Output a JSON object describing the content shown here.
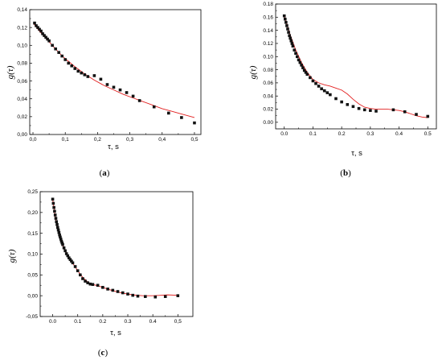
{
  "colors": {
    "points": "#111111",
    "fit_line": "#e32020",
    "axis": "#000000"
  },
  "chart_data": [
    {
      "id": "a",
      "type": "scatter",
      "panel_label": {
        "open": "(",
        "letter": "a",
        "close": ")"
      },
      "title": "",
      "ylabel": "g(τ)",
      "xlabel": "τ, s",
      "xlim": [
        -0.01,
        0.52
      ],
      "ylim": [
        0.0,
        0.14
      ],
      "x_ticks": [
        0.0,
        0.1,
        0.2,
        0.3,
        0.4,
        0.5
      ],
      "x_tick_labels": [
        "0,0",
        "0,1",
        "0,2",
        "0,3",
        "0,4",
        "0,5"
      ],
      "y_ticks": [
        0.0,
        0.02,
        0.04,
        0.06,
        0.08,
        0.1,
        0.12,
        0.14
      ],
      "y_tick_labels": [
        "0,00",
        "0,02",
        "0,04",
        "0,06",
        "0,08",
        "0,10",
        "0,12",
        "0,14"
      ],
      "grid": false,
      "series": [
        {
          "kind": "points",
          "x": [
            0.005,
            0.01,
            0.015,
            0.02,
            0.025,
            0.03,
            0.035,
            0.04,
            0.045,
            0.05,
            0.06,
            0.07,
            0.08,
            0.09,
            0.1,
            0.11,
            0.12,
            0.13,
            0.14,
            0.15,
            0.16,
            0.17,
            0.19,
            0.21,
            0.23,
            0.25,
            0.27,
            0.29,
            0.31,
            0.33,
            0.375,
            0.42,
            0.46,
            0.5
          ],
          "y": [
            0.125,
            0.122,
            0.12,
            0.118,
            0.116,
            0.113,
            0.111,
            0.109,
            0.107,
            0.105,
            0.1,
            0.096,
            0.092,
            0.088,
            0.084,
            0.08,
            0.077,
            0.074,
            0.071,
            0.069,
            0.067,
            0.065,
            0.066,
            0.062,
            0.056,
            0.053,
            0.05,
            0.047,
            0.043,
            0.038,
            0.031,
            0.024,
            0.019,
            0.013
          ]
        },
        {
          "kind": "line",
          "x": [
            0.003,
            0.02,
            0.04,
            0.06,
            0.08,
            0.1,
            0.13,
            0.16,
            0.19,
            0.22,
            0.25,
            0.28,
            0.31,
            0.34,
            0.37,
            0.4,
            0.43,
            0.46,
            0.5
          ],
          "y": [
            0.124,
            0.116,
            0.108,
            0.1,
            0.092,
            0.085,
            0.076,
            0.068,
            0.061,
            0.055,
            0.05,
            0.045,
            0.041,
            0.037,
            0.033,
            0.029,
            0.026,
            0.023,
            0.019
          ]
        }
      ]
    },
    {
      "id": "b",
      "type": "scatter",
      "panel_label": {
        "open": "(",
        "letter": "b",
        "close": ")"
      },
      "title": "",
      "ylabel": "g(τ)",
      "xlabel": "τ, s",
      "xlim": [
        -0.03,
        0.53
      ],
      "ylim": [
        -0.01,
        0.18
      ],
      "x_ticks": [
        0.0,
        0.1,
        0.2,
        0.3,
        0.4,
        0.5
      ],
      "x_tick_labels": [
        "0.0",
        "0.1",
        "0.2",
        "0.3",
        "0.4",
        "0.5"
      ],
      "y_ticks": [
        0.0,
        0.02,
        0.04,
        0.06,
        0.08,
        0.1,
        0.12,
        0.14,
        0.16,
        0.18
      ],
      "y_tick_labels": [
        "0.00",
        "0.02",
        "0.04",
        "0.06",
        "0.08",
        "0.10",
        "0.12",
        "0.14",
        "0.16",
        "0.18"
      ],
      "grid": false,
      "series": [
        {
          "kind": "points",
          "x": [
            0.0,
            0.003,
            0.006,
            0.009,
            0.012,
            0.015,
            0.018,
            0.021,
            0.024,
            0.027,
            0.03,
            0.035,
            0.04,
            0.045,
            0.05,
            0.055,
            0.06,
            0.065,
            0.07,
            0.075,
            0.08,
            0.09,
            0.1,
            0.11,
            0.12,
            0.13,
            0.14,
            0.15,
            0.16,
            0.18,
            0.2,
            0.22,
            0.24,
            0.26,
            0.28,
            0.3,
            0.32,
            0.38,
            0.42,
            0.46,
            0.5
          ],
          "y": [
            0.162,
            0.157,
            0.152,
            0.147,
            0.142,
            0.137,
            0.132,
            0.128,
            0.124,
            0.12,
            0.116,
            0.11,
            0.105,
            0.1,
            0.095,
            0.091,
            0.087,
            0.083,
            0.079,
            0.076,
            0.073,
            0.068,
            0.063,
            0.059,
            0.055,
            0.051,
            0.048,
            0.045,
            0.042,
            0.036,
            0.031,
            0.027,
            0.024,
            0.021,
            0.019,
            0.018,
            0.017,
            0.019,
            0.016,
            0.012,
            0.009
          ]
        },
        {
          "kind": "line",
          "x": [
            0.0,
            0.02,
            0.04,
            0.06,
            0.08,
            0.1,
            0.12,
            0.14,
            0.16,
            0.18,
            0.2,
            0.22,
            0.24,
            0.26,
            0.28,
            0.3,
            0.32,
            0.34,
            0.36,
            0.38,
            0.4,
            0.42,
            0.44,
            0.46,
            0.48,
            0.5
          ],
          "y": [
            0.162,
            0.134,
            0.11,
            0.091,
            0.076,
            0.065,
            0.06,
            0.057,
            0.055,
            0.052,
            0.049,
            0.043,
            0.035,
            0.028,
            0.023,
            0.021,
            0.02,
            0.02,
            0.02,
            0.019,
            0.018,
            0.016,
            0.013,
            0.01,
            0.008,
            0.007
          ]
        }
      ]
    },
    {
      "id": "c",
      "type": "scatter",
      "panel_label": {
        "open": "(",
        "letter": "c",
        "close": ")"
      },
      "title": "",
      "ylabel": "g(τ)",
      "xlabel": "τ, s",
      "xlim": [
        -0.05,
        0.56
      ],
      "ylim": [
        -0.05,
        0.25
      ],
      "x_ticks": [
        0.0,
        0.1,
        0.2,
        0.3,
        0.4,
        0.5
      ],
      "x_tick_labels": [
        "0.0",
        "0.1",
        "0.2",
        "0.3",
        "0.4",
        "0,5"
      ],
      "y_ticks": [
        -0.05,
        0.0,
        0.05,
        0.1,
        0.15,
        0.2,
        0.25
      ],
      "y_tick_labels": [
        "-0,05",
        "0,00",
        "0,05",
        "0,10",
        "0,15",
        "0,20",
        "0,25"
      ],
      "grid": false,
      "series": [
        {
          "kind": "points",
          "x": [
            0.0,
            0.0025,
            0.005,
            0.0075,
            0.01,
            0.0125,
            0.015,
            0.0175,
            0.02,
            0.0225,
            0.025,
            0.0275,
            0.03,
            0.0325,
            0.035,
            0.0375,
            0.04,
            0.045,
            0.05,
            0.055,
            0.06,
            0.065,
            0.07,
            0.075,
            0.08,
            0.09,
            0.1,
            0.11,
            0.12,
            0.13,
            0.14,
            0.15,
            0.16,
            0.18,
            0.2,
            0.22,
            0.24,
            0.26,
            0.28,
            0.3,
            0.32,
            0.34,
            0.37,
            0.41,
            0.45,
            0.5
          ],
          "y": [
            0.232,
            0.222,
            0.212,
            0.203,
            0.194,
            0.186,
            0.178,
            0.171,
            0.164,
            0.158,
            0.152,
            0.146,
            0.141,
            0.136,
            0.131,
            0.127,
            0.123,
            0.115,
            0.108,
            0.101,
            0.096,
            0.091,
            0.087,
            0.083,
            0.079,
            0.07,
            0.06,
            0.05,
            0.041,
            0.035,
            0.031,
            0.028,
            0.027,
            0.025,
            0.02,
            0.016,
            0.013,
            0.01,
            0.007,
            0.004,
            0.001,
            -0.001,
            -0.002,
            -0.003,
            -0.002,
            0.0
          ]
        },
        {
          "kind": "line",
          "x": [
            0.0,
            0.01,
            0.02,
            0.03,
            0.04,
            0.06,
            0.08,
            0.1,
            0.12,
            0.14,
            0.16,
            0.18,
            0.2,
            0.22,
            0.24,
            0.26,
            0.28,
            0.3,
            0.32,
            0.34,
            0.36,
            0.38,
            0.4,
            0.43,
            0.46,
            0.5
          ],
          "y": [
            0.232,
            0.19,
            0.16,
            0.138,
            0.12,
            0.097,
            0.078,
            0.06,
            0.044,
            0.033,
            0.027,
            0.024,
            0.02,
            0.016,
            0.012,
            0.009,
            0.006,
            0.004,
            0.002,
            0.001,
            0.0,
            0.0,
            0.0,
            0.001,
            0.002,
            0.001
          ]
        }
      ]
    }
  ]
}
